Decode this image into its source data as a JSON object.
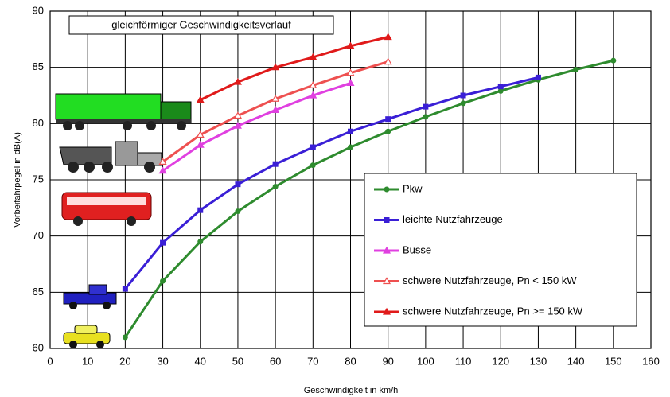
{
  "chart_data": {
    "type": "line",
    "title": "gleichförmiger Geschwindigkeitsverlauf",
    "x_label": "Geschwindigkeit in km/h",
    "y_label": "Vorbeifahrpegel in dB(A)",
    "xlim": [
      0,
      160
    ],
    "xticks": [
      0,
      10,
      20,
      30,
      40,
      50,
      60,
      70,
      80,
      90,
      100,
      110,
      120,
      130,
      140,
      150,
      160
    ],
    "ylim": [
      60,
      90
    ],
    "yticks": [
      60,
      65,
      70,
      75,
      80,
      85,
      90
    ],
    "grid": true,
    "series": [
      {
        "name": "Pkw",
        "color": "#2e8b2e",
        "marker": "circle",
        "x": [
          20,
          30,
          40,
          50,
          60,
          70,
          80,
          90,
          100,
          110,
          120,
          130,
          140,
          150
        ],
        "values": [
          61.0,
          66.0,
          69.5,
          72.2,
          74.4,
          76.3,
          77.9,
          79.3,
          80.6,
          81.8,
          82.9,
          83.9,
          84.8,
          85.6
        ]
      },
      {
        "name": "leichte Nutzfahrzeuge",
        "color": "#3a1fd6",
        "marker": "square",
        "x": [
          20,
          30,
          40,
          50,
          60,
          70,
          80,
          90,
          100,
          110,
          120,
          130
        ],
        "values": [
          65.3,
          69.4,
          72.3,
          74.6,
          76.4,
          77.9,
          79.3,
          80.4,
          81.5,
          82.5,
          83.3,
          84.1
        ]
      },
      {
        "name": "Busse",
        "color": "#e040e0",
        "marker": "triangle",
        "x": [
          30,
          40,
          50,
          60,
          70,
          80
        ],
        "values": [
          75.8,
          78.1,
          79.8,
          81.2,
          82.5,
          83.6
        ]
      },
      {
        "name": "schwere Nutzfahrzeuge, Pn < 150 kW",
        "color": "#ee5050",
        "marker": "open-triangle",
        "x": [
          30,
          40,
          50,
          60,
          70,
          80,
          90
        ],
        "values": [
          76.6,
          79.0,
          80.7,
          82.2,
          83.4,
          84.5,
          85.5
        ]
      },
      {
        "name": "schwere Nutzfahrzeuge, Pn >= 150 kW",
        "color": "#e01a1a",
        "marker": "triangle",
        "x": [
          40,
          50,
          60,
          70,
          80,
          90
        ],
        "values": [
          82.1,
          83.7,
          85.0,
          85.9,
          86.9,
          87.7
        ]
      }
    ]
  }
}
